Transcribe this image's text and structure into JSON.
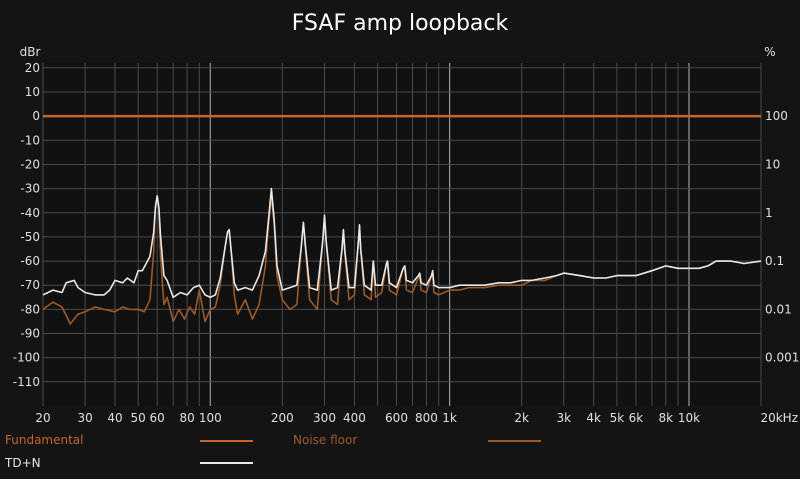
{
  "chart_data": {
    "type": "line",
    "title": "FSAF amp loopback",
    "left_axis_unit": "dBr",
    "right_axis_unit": "%",
    "x_scale": "log",
    "xlim": [
      20,
      20000
    ],
    "ylim": [
      -120,
      22
    ],
    "x_tick_labels": [
      {
        "value": 20,
        "label": "20"
      },
      {
        "value": 30,
        "label": "30"
      },
      {
        "value": 40,
        "label": "40"
      },
      {
        "value": 50,
        "label": "50"
      },
      {
        "value": 60,
        "label": "60"
      },
      {
        "value": 80,
        "label": "80"
      },
      {
        "value": 100,
        "label": "100"
      },
      {
        "value": 200,
        "label": "200"
      },
      {
        "value": 300,
        "label": "300"
      },
      {
        "value": 400,
        "label": "400"
      },
      {
        "value": 600,
        "label": "600"
      },
      {
        "value": 800,
        "label": "800"
      },
      {
        "value": 1000,
        "label": "1k"
      },
      {
        "value": 2000,
        "label": "2k"
      },
      {
        "value": 3000,
        "label": "3k"
      },
      {
        "value": 4000,
        "label": "4k"
      },
      {
        "value": 5000,
        "label": "5k"
      },
      {
        "value": 6000,
        "label": "6k"
      },
      {
        "value": 8000,
        "label": "8k"
      },
      {
        "value": 10000,
        "label": "10k"
      },
      {
        "value": 20000,
        "label": "20kHz"
      }
    ],
    "y_tick_labels": [
      "20",
      "10",
      "0",
      "-10",
      "-20",
      "-30",
      "-40",
      "-50",
      "-60",
      "-70",
      "-80",
      "-90",
      "-100",
      "-110"
    ],
    "y_tick_values": [
      20,
      10,
      0,
      -10,
      -20,
      -30,
      -40,
      -50,
      -60,
      -70,
      -80,
      -90,
      -100,
      -110
    ],
    "right_tick_labels": [
      {
        "dbr": 0,
        "label": "100"
      },
      {
        "dbr": -20,
        "label": "10"
      },
      {
        "dbr": -40,
        "label": "1"
      },
      {
        "dbr": -60,
        "label": "0.1"
      },
      {
        "dbr": -80,
        "label": "0.01"
      },
      {
        "dbr": -100,
        "label": "0.001"
      }
    ],
    "grid": true,
    "legend_position": "bottom",
    "colors": {
      "background": "#141414",
      "plot_bg": "#111111",
      "grid_minor": "#4a4a4a",
      "grid_major": "#9a9a9a",
      "fundamental": "#c8642a",
      "noise_floor": "#9b5a2a",
      "tdn": "#e8e8e8"
    },
    "series": [
      {
        "name": "Fundamental",
        "points": [
          [
            20,
            0
          ],
          [
            20000,
            0
          ]
        ]
      },
      {
        "name": "Noise floor",
        "points": [
          [
            20,
            -80
          ],
          [
            22,
            -77
          ],
          [
            24,
            -79
          ],
          [
            26,
            -86
          ],
          [
            28,
            -82
          ],
          [
            30,
            -81
          ],
          [
            33,
            -79
          ],
          [
            36,
            -80
          ],
          [
            40,
            -81
          ],
          [
            43,
            -79
          ],
          [
            46,
            -80
          ],
          [
            50,
            -80
          ],
          [
            53,
            -81
          ],
          [
            56,
            -76
          ],
          [
            58,
            -56
          ],
          [
            59,
            -37
          ],
          [
            60,
            -33
          ],
          [
            61,
            -38
          ],
          [
            62,
            -58
          ],
          [
            64,
            -78
          ],
          [
            66,
            -75
          ],
          [
            70,
            -85
          ],
          [
            74,
            -80
          ],
          [
            78,
            -84
          ],
          [
            82,
            -79
          ],
          [
            86,
            -82
          ],
          [
            90,
            -72
          ],
          [
            95,
            -85
          ],
          [
            100,
            -80
          ],
          [
            105,
            -79
          ],
          [
            110,
            -70
          ],
          [
            115,
            -55
          ],
          [
            118,
            -48
          ],
          [
            120,
            -47
          ],
          [
            122,
            -55
          ],
          [
            126,
            -74
          ],
          [
            130,
            -82
          ],
          [
            140,
            -76
          ],
          [
            150,
            -84
          ],
          [
            160,
            -78
          ],
          [
            170,
            -62
          ],
          [
            175,
            -45
          ],
          [
            180,
            -33
          ],
          [
            185,
            -45
          ],
          [
            190,
            -66
          ],
          [
            200,
            -76
          ],
          [
            215,
            -80
          ],
          [
            230,
            -78
          ],
          [
            240,
            -54
          ],
          [
            245,
            -44
          ],
          [
            250,
            -55
          ],
          [
            260,
            -76
          ],
          [
            280,
            -80
          ],
          [
            295,
            -52
          ],
          [
            300,
            -42
          ],
          [
            305,
            -52
          ],
          [
            320,
            -76
          ],
          [
            340,
            -78
          ],
          [
            355,
            -55
          ],
          [
            360,
            -48
          ],
          [
            365,
            -57
          ],
          [
            380,
            -76
          ],
          [
            400,
            -74
          ],
          [
            415,
            -53
          ],
          [
            420,
            -46
          ],
          [
            425,
            -55
          ],
          [
            440,
            -74
          ],
          [
            470,
            -76
          ],
          [
            480,
            -60
          ],
          [
            490,
            -75
          ],
          [
            520,
            -73
          ],
          [
            545,
            -61
          ],
          [
            550,
            -60
          ],
          [
            560,
            -72
          ],
          [
            600,
            -74
          ],
          [
            640,
            -63
          ],
          [
            650,
            -63
          ],
          [
            660,
            -72
          ],
          [
            700,
            -73
          ],
          [
            740,
            -67
          ],
          [
            750,
            -66
          ],
          [
            760,
            -72
          ],
          [
            800,
            -73
          ],
          [
            840,
            -66
          ],
          [
            850,
            -65
          ],
          [
            860,
            -73
          ],
          [
            900,
            -74
          ],
          [
            1000,
            -72
          ],
          [
            1100,
            -72
          ],
          [
            1200,
            -71
          ],
          [
            1400,
            -71
          ],
          [
            1600,
            -70
          ],
          [
            1800,
            -70
          ],
          [
            2000,
            -70
          ],
          [
            2200,
            -68
          ],
          [
            2500,
            -68
          ],
          [
            2800,
            -66
          ],
          [
            3000,
            -65
          ],
          [
            3500,
            -66
          ],
          [
            4000,
            -67
          ],
          [
            4500,
            -67
          ],
          [
            5000,
            -66
          ],
          [
            5500,
            -66
          ],
          [
            6000,
            -66
          ],
          [
            7000,
            -64
          ],
          [
            8000,
            -62
          ],
          [
            9000,
            -63
          ],
          [
            10000,
            -63
          ],
          [
            11000,
            -63
          ],
          [
            12000,
            -62
          ],
          [
            13000,
            -60
          ],
          [
            15000,
            -60
          ],
          [
            17000,
            -61
          ],
          [
            20000,
            -60
          ]
        ]
      },
      {
        "name": "TD+N",
        "points": [
          [
            20,
            -74
          ],
          [
            22,
            -72
          ],
          [
            24,
            -73
          ],
          [
            25,
            -69
          ],
          [
            27,
            -68
          ],
          [
            28,
            -71
          ],
          [
            30,
            -73
          ],
          [
            33,
            -74
          ],
          [
            36,
            -74
          ],
          [
            38,
            -72
          ],
          [
            40,
            -68
          ],
          [
            43,
            -69
          ],
          [
            45,
            -67
          ],
          [
            48,
            -69
          ],
          [
            50,
            -64
          ],
          [
            52,
            -64
          ],
          [
            54,
            -61
          ],
          [
            56,
            -58
          ],
          [
            58,
            -48
          ],
          [
            59,
            -38
          ],
          [
            60,
            -33
          ],
          [
            61,
            -38
          ],
          [
            62,
            -50
          ],
          [
            64,
            -66
          ],
          [
            66,
            -68
          ],
          [
            70,
            -75
          ],
          [
            75,
            -73
          ],
          [
            80,
            -74
          ],
          [
            85,
            -71
          ],
          [
            90,
            -70
          ],
          [
            95,
            -74
          ],
          [
            100,
            -75
          ],
          [
            105,
            -74
          ],
          [
            110,
            -67
          ],
          [
            115,
            -55
          ],
          [
            118,
            -48
          ],
          [
            120,
            -47
          ],
          [
            122,
            -55
          ],
          [
            126,
            -69
          ],
          [
            130,
            -72
          ],
          [
            140,
            -71
          ],
          [
            150,
            -72
          ],
          [
            160,
            -66
          ],
          [
            170,
            -56
          ],
          [
            175,
            -43
          ],
          [
            180,
            -30
          ],
          [
            185,
            -43
          ],
          [
            190,
            -62
          ],
          [
            200,
            -72
          ],
          [
            215,
            -71
          ],
          [
            230,
            -70
          ],
          [
            240,
            -54
          ],
          [
            245,
            -44
          ],
          [
            250,
            -54
          ],
          [
            260,
            -71
          ],
          [
            280,
            -72
          ],
          [
            295,
            -52
          ],
          [
            300,
            -41
          ],
          [
            305,
            -52
          ],
          [
            320,
            -72
          ],
          [
            340,
            -71
          ],
          [
            355,
            -55
          ],
          [
            360,
            -47
          ],
          [
            365,
            -56
          ],
          [
            380,
            -71
          ],
          [
            400,
            -71
          ],
          [
            415,
            -53
          ],
          [
            420,
            -45
          ],
          [
            425,
            -55
          ],
          [
            440,
            -70
          ],
          [
            470,
            -72
          ],
          [
            480,
            -60
          ],
          [
            490,
            -70
          ],
          [
            520,
            -70
          ],
          [
            545,
            -61
          ],
          [
            550,
            -60
          ],
          [
            560,
            -69
          ],
          [
            600,
            -71
          ],
          [
            640,
            -63
          ],
          [
            650,
            -62
          ],
          [
            660,
            -68
          ],
          [
            700,
            -69
          ],
          [
            740,
            -66
          ],
          [
            750,
            -65
          ],
          [
            760,
            -69
          ],
          [
            800,
            -70
          ],
          [
            840,
            -66
          ],
          [
            850,
            -64
          ],
          [
            860,
            -70
          ],
          [
            900,
            -71
          ],
          [
            1000,
            -71
          ],
          [
            1100,
            -70
          ],
          [
            1200,
            -70
          ],
          [
            1400,
            -70
          ],
          [
            1600,
            -69
          ],
          [
            1800,
            -69
          ],
          [
            2000,
            -68
          ],
          [
            2200,
            -68
          ],
          [
            2500,
            -67
          ],
          [
            2800,
            -66
          ],
          [
            3000,
            -65
          ],
          [
            3500,
            -66
          ],
          [
            4000,
            -67
          ],
          [
            4500,
            -67
          ],
          [
            5000,
            -66
          ],
          [
            5500,
            -66
          ],
          [
            6000,
            -66
          ],
          [
            7000,
            -64
          ],
          [
            8000,
            -62
          ],
          [
            9000,
            -63
          ],
          [
            10000,
            -63
          ],
          [
            11000,
            -63
          ],
          [
            12000,
            -62
          ],
          [
            13000,
            -60
          ],
          [
            15000,
            -60
          ],
          [
            17000,
            -61
          ],
          [
            20000,
            -60
          ]
        ]
      }
    ]
  },
  "legend": {
    "fundamental_label": "Fundamental",
    "noise_label": "Noise floor",
    "tdn_label": "TD+N"
  }
}
